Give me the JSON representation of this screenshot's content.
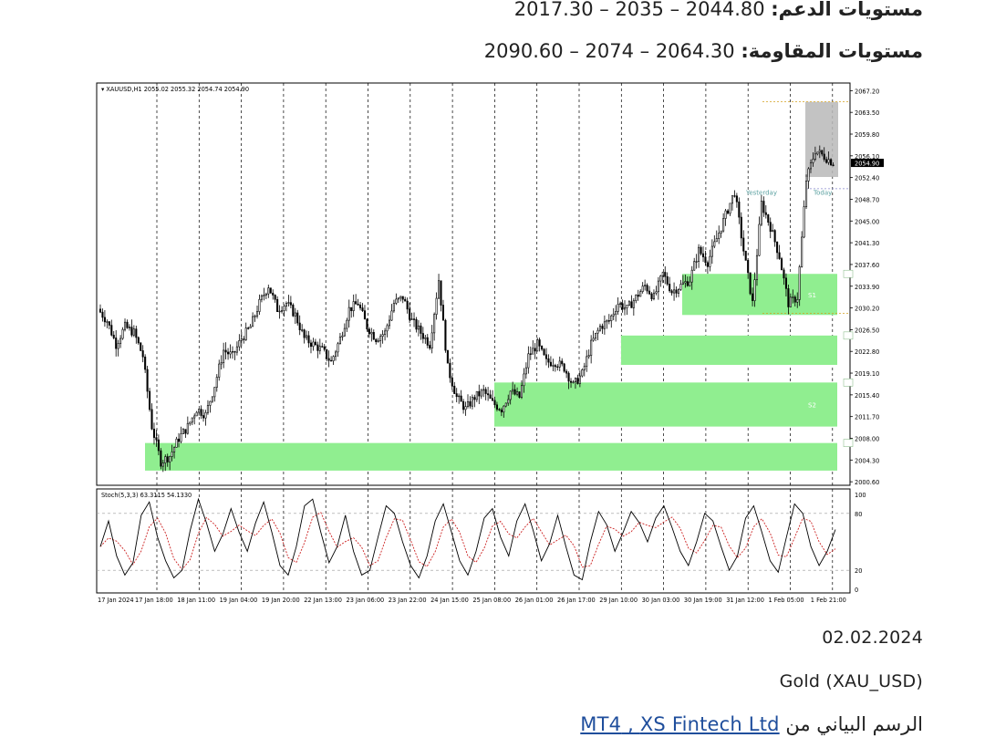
{
  "header": {
    "support_label": "مستويات الدعم:",
    "support_values": "2044.80 – 2035 – 2017.30",
    "resistance_label": "مستويات المقاومة:",
    "resistance_values": "2064.30 – 2074 – 2090.60"
  },
  "footer": {
    "date": "02.02.2024",
    "symbol": "Gold (XAU_USD)",
    "source_prefix": "الرسم البياني من",
    "source_link_1": "XS Fintech Ltd",
    "source_sep": " , ",
    "source_link_2": "MT4"
  },
  "colors": {
    "candle": "#000000",
    "zone": "#90ee90",
    "stoch_main": "#000000",
    "stoch_signal": "#cc2222",
    "grid": "#000000",
    "price_label_bg": "#000000"
  },
  "chart_data": [
    {
      "type": "candlestick",
      "title": "XAUUSD,H1  2055.02 2055.32 2054.74 2054.90",
      "symbol": "XAUUSD",
      "timeframe": "H1",
      "ohlc_label": "2055.02 2055.32 2054.74 2054.90",
      "last_price": 2054.9,
      "y_ticks": [
        2000.6,
        2004.3,
        2008.0,
        2011.7,
        2015.4,
        2019.1,
        2022.8,
        2026.5,
        2030.2,
        2033.9,
        2037.6,
        2041.3,
        2045.0,
        2048.7,
        2052.4,
        2056.1,
        2059.8,
        2063.5,
        2067.2
      ],
      "ylim": [
        2000.0,
        2068.5
      ],
      "x_ticks": [
        "17 Jan 2024",
        "17 Jan 18:00",
        "18 Jan 11:00",
        "19 Jan 04:00",
        "19 Jan 20:00",
        "22 Jan 13:00",
        "23 Jan 06:00",
        "23 Jan 22:00",
        "24 Jan 15:00",
        "25 Jan 08:00",
        "26 Jan 01:00",
        "26 Jan 17:00",
        "29 Jan 10:00",
        "30 Jan 03:00",
        "30 Jan 19:00",
        "31 Jan 12:00",
        "1 Feb 05:00",
        "1 Feb 21:00"
      ],
      "price_path": [
        2030,
        2028,
        2024,
        2027,
        2026,
        2022,
        2010,
        2004,
        2005,
        2008,
        2010,
        2013,
        2012,
        2017,
        2023,
        2022,
        2025,
        2027,
        2031,
        2034,
        2030,
        2031,
        2029,
        2025,
        2024,
        2023,
        2021,
        2025,
        2030,
        2031,
        2027,
        2025,
        2026,
        2031,
        2032,
        2028,
        2026,
        2024,
        2035,
        2020,
        2015,
        2013,
        2015,
        2016,
        2014,
        2013,
        2016,
        2015,
        2022,
        2024,
        2021,
        2021,
        2020,
        2017,
        2019,
        2024,
        2027,
        2028,
        2031,
        2030,
        2032,
        2034,
        2032,
        2036,
        2033,
        2034,
        2035,
        2040,
        2038,
        2042,
        2046,
        2050,
        2040,
        2031,
        2048,
        2044,
        2039,
        2031,
        2032,
        2052,
        2057,
        2056,
        2054.9
      ],
      "zones": [
        {
          "label": "",
          "from": 2002.5,
          "to": 2007.2
        },
        {
          "label": "S2",
          "from": 2010.0,
          "to": 2017.5
        },
        {
          "label": "",
          "from": 2020.5,
          "to": 2025.5
        },
        {
          "label": "S1",
          "from": 2029.0,
          "to": 2036.0
        }
      ],
      "range_box": {
        "from": 2052.5,
        "to": 2065.3
      },
      "annotations": [
        "Yesterday",
        "Today"
      ]
    },
    {
      "type": "line",
      "title": "Stoch(5,3,3) 63.3115 54.1330",
      "indicator": "Stoch(5,3,3)",
      "main_value": 63.3115,
      "signal_value": 54.133,
      "y_ticks": [
        0,
        20,
        80,
        100
      ],
      "ylim": [
        0,
        100
      ],
      "levels": [
        20,
        80
      ],
      "series": [
        {
          "name": "Main",
          "values": [
            45,
            72,
            35,
            15,
            28,
            78,
            92,
            55,
            30,
            12,
            20,
            62,
            95,
            70,
            40,
            58,
            85,
            60,
            40,
            70,
            92,
            60,
            25,
            15,
            45,
            88,
            95,
            60,
            28,
            45,
            78,
            40,
            15,
            20,
            55,
            88,
            80,
            50,
            25,
            12,
            35,
            72,
            90,
            60,
            30,
            15,
            40,
            75,
            85,
            55,
            35,
            72,
            90,
            62,
            30,
            48,
            78,
            45,
            15,
            10,
            50,
            82,
            68,
            40,
            60,
            82,
            70,
            50,
            75,
            88,
            65,
            40,
            25,
            50,
            80,
            72,
            45,
            20,
            35,
            75,
            88,
            60,
            30,
            18,
            55,
            90,
            80,
            45,
            25,
            40,
            63
          ]
        }
      ]
    }
  ]
}
